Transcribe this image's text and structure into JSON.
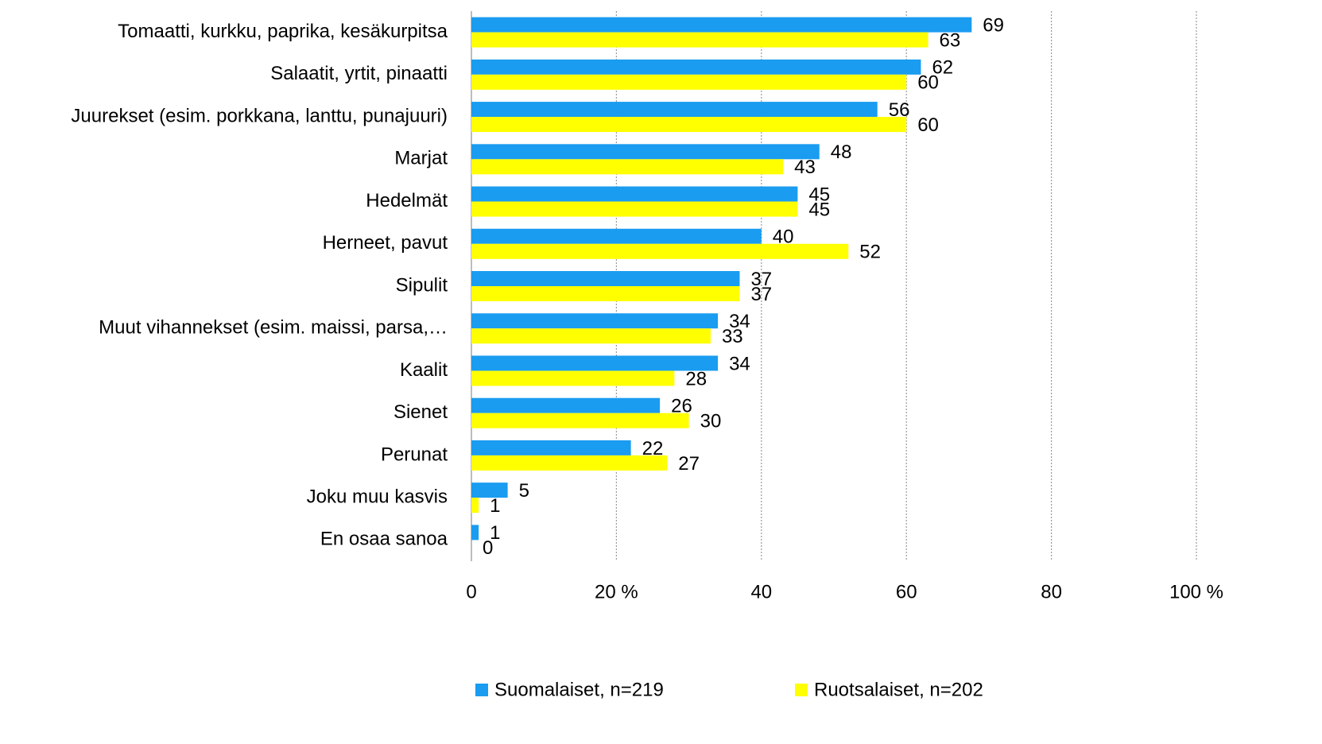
{
  "chart_data": {
    "type": "hbar",
    "categories": [
      "Tomaatti, kurkku, paprika, kesäkurpitsa",
      "Salaatit, yrtit, pinaatti",
      "Juurekset (esim. porkkana, lanttu, punajuuri)",
      "Marjat",
      "Hedelmät",
      "Herneet, pavut",
      "Sipulit",
      "Muut vihannekset (esim. maissi, parsa,…",
      "Kaalit",
      "Sienet",
      "Perunat",
      "Joku muu kasvis",
      "En osaa sanoa"
    ],
    "series": [
      {
        "name": "Suomalaiset, n=219",
        "color": "#1a9cf0",
        "values": [
          69,
          62,
          56,
          48,
          45,
          40,
          37,
          34,
          34,
          26,
          22,
          5,
          1
        ]
      },
      {
        "name": "Ruotsalaiset, n=202",
        "color": "#ffff00",
        "values": [
          63,
          60,
          60,
          43,
          45,
          52,
          37,
          33,
          28,
          30,
          27,
          1,
          0
        ]
      }
    ],
    "xlim": [
      0,
      100
    ],
    "xticks": [
      0,
      {
        "value": 20,
        "label": "20 %"
      },
      40,
      60,
      80,
      {
        "value": 100,
        "label": "100 %"
      }
    ],
    "grid": true,
    "legend": "bottom"
  }
}
